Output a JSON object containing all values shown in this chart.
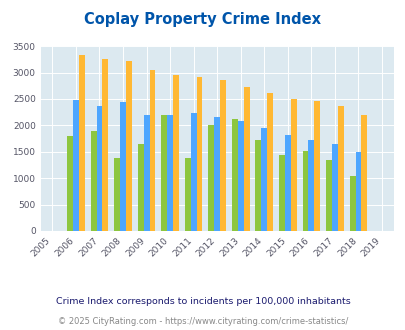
{
  "title": "Coplay Property Crime Index",
  "years": [
    2005,
    2006,
    2007,
    2008,
    2009,
    2010,
    2011,
    2012,
    2013,
    2014,
    2015,
    2016,
    2017,
    2018,
    2019
  ],
  "coplay": [
    null,
    1800,
    1900,
    1380,
    1640,
    2200,
    1380,
    2000,
    2130,
    1730,
    1440,
    1510,
    1350,
    1050,
    null
  ],
  "pennsylvania": [
    null,
    2480,
    2370,
    2440,
    2200,
    2190,
    2240,
    2160,
    2080,
    1960,
    1810,
    1730,
    1640,
    1500,
    null
  ],
  "national": [
    null,
    3340,
    3260,
    3220,
    3040,
    2950,
    2910,
    2860,
    2730,
    2610,
    2500,
    2470,
    2370,
    2200,
    null
  ],
  "coplay_color": "#8dc63f",
  "pennsylvania_color": "#4da6ff",
  "national_color": "#ffb833",
  "ylim": [
    0,
    3500
  ],
  "yticks": [
    0,
    500,
    1000,
    1500,
    2000,
    2500,
    3000,
    3500
  ],
  "bg_color": "#dce9f0",
  "fig_bg": "#ffffff",
  "note": "Crime Index corresponds to incidents per 100,000 inhabitants",
  "footer": "© 2025 CityRating.com - https://www.cityrating.com/crime-statistics/",
  "title_color": "#0055aa",
  "note_color": "#1a1a6e",
  "footer_color": "#888888",
  "footer_link_color": "#4477cc",
  "bar_width": 0.25
}
